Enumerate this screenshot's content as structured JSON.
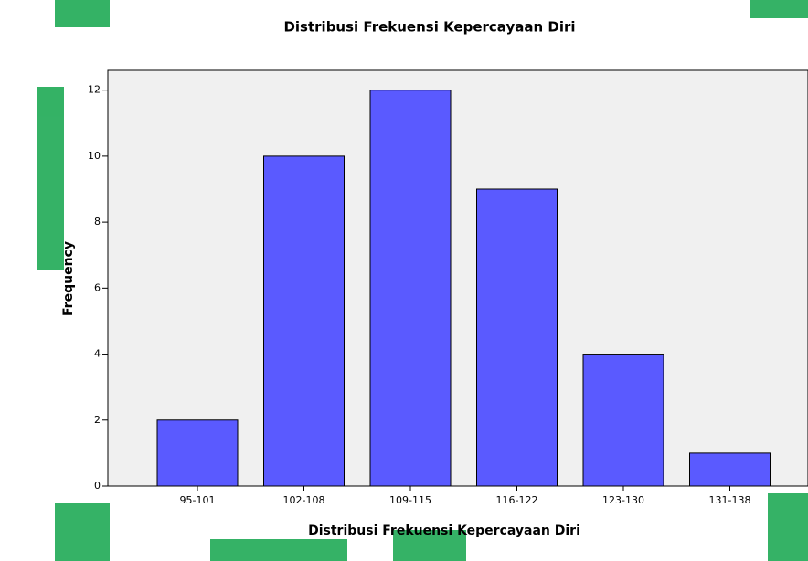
{
  "chart_data": {
    "type": "bar",
    "title": "Distribusi Frekuensi Kepercayaan Diri",
    "x_label": "Distribusi Frekuensi Kepercayaan Diri",
    "y_label": "Frequency",
    "categories": [
      "95-101",
      "102-108",
      "109-115",
      "116-122",
      "123-130",
      "131-138"
    ],
    "values": [
      2,
      10,
      12,
      9,
      4,
      1
    ],
    "color": "#5a5aff",
    "ylim": [
      0,
      12.6
    ],
    "yticks": [
      0,
      2,
      4,
      6,
      8,
      10,
      12
    ],
    "grid": false
  }
}
